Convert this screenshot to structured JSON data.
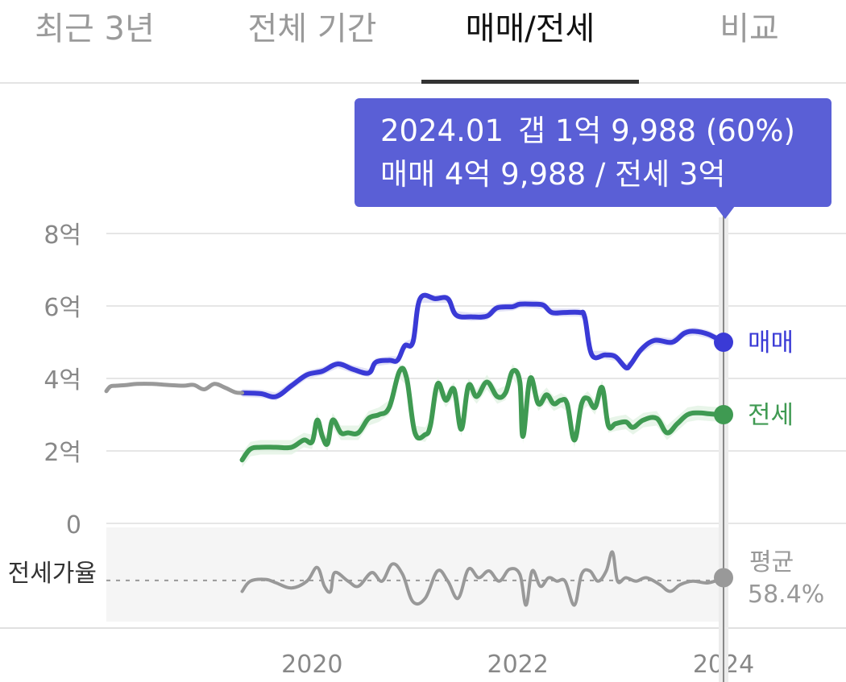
{
  "tabs": [
    {
      "label": "최근 3년"
    },
    {
      "label": "전체 기간"
    },
    {
      "label": "매매/전세"
    },
    {
      "label": "비교"
    }
  ],
  "active_tab": 2,
  "tooltip": {
    "date": "2024.01",
    "gap": "갭 1억 9,988 (60%)",
    "detail": "매매 4억 9,988 / 전세 3억"
  },
  "colors": {
    "sale": "#3a3ad6",
    "jeonse": "#3f9a52",
    "ratio": "#999999",
    "history": "#999999",
    "tooltip_bg": "#5a5fd6",
    "sale_band": "#dcdcf5",
    "jeonse_band": "#e2f2e4",
    "ratio_bg": "#f5f5f5"
  },
  "chart_data": {
    "type": "line",
    "xlabel": "",
    "ylabel": "",
    "ylim": [
      0,
      8
    ],
    "y_ticks": [
      "8억",
      "6억",
      "4억",
      "2억",
      "0"
    ],
    "x_ticks": [
      "2020",
      "2022",
      "2024"
    ],
    "x_range": [
      2018.0,
      2024.0
    ],
    "grid": true,
    "legend": "right-end labels",
    "series": [
      {
        "name": "매매",
        "key": "sale",
        "points": [
          [
            2019.32,
            3.6
          ],
          [
            2019.5,
            3.58
          ],
          [
            2019.65,
            3.5
          ],
          [
            2019.8,
            3.8
          ],
          [
            2019.95,
            4.1
          ],
          [
            2020.1,
            4.2
          ],
          [
            2020.25,
            4.4
          ],
          [
            2020.4,
            4.25
          ],
          [
            2020.55,
            4.15
          ],
          [
            2020.62,
            4.45
          ],
          [
            2020.75,
            4.5
          ],
          [
            2020.83,
            4.5
          ],
          [
            2020.9,
            4.9
          ],
          [
            2020.98,
            5.0
          ],
          [
            2021.05,
            6.2
          ],
          [
            2021.2,
            6.2
          ],
          [
            2021.32,
            6.2
          ],
          [
            2021.4,
            5.75
          ],
          [
            2021.55,
            5.7
          ],
          [
            2021.7,
            5.72
          ],
          [
            2021.8,
            5.95
          ],
          [
            2021.95,
            5.98
          ],
          [
            2022.02,
            6.05
          ],
          [
            2022.15,
            6.05
          ],
          [
            2022.25,
            6.02
          ],
          [
            2022.33,
            5.82
          ],
          [
            2022.45,
            5.82
          ],
          [
            2022.6,
            5.82
          ],
          [
            2022.65,
            5.7
          ],
          [
            2022.72,
            4.65
          ],
          [
            2022.85,
            4.65
          ],
          [
            2022.95,
            4.6
          ],
          [
            2023.05,
            4.3
          ],
          [
            2023.1,
            4.4
          ],
          [
            2023.2,
            4.8
          ],
          [
            2023.33,
            5.05
          ],
          [
            2023.5,
            5.0
          ],
          [
            2023.62,
            5.25
          ],
          [
            2023.72,
            5.3
          ],
          [
            2023.85,
            5.22
          ],
          [
            2024.0,
            4.9988
          ]
        ]
      },
      {
        "name": "전세",
        "key": "jeonse",
        "points": [
          [
            2019.32,
            1.75
          ],
          [
            2019.4,
            2.05
          ],
          [
            2019.5,
            2.1
          ],
          [
            2019.65,
            2.1
          ],
          [
            2019.8,
            2.1
          ],
          [
            2019.92,
            2.3
          ],
          [
            2020.0,
            2.25
          ],
          [
            2020.05,
            2.85
          ],
          [
            2020.1,
            2.4
          ],
          [
            2020.15,
            2.2
          ],
          [
            2020.2,
            2.85
          ],
          [
            2020.28,
            2.5
          ],
          [
            2020.35,
            2.5
          ],
          [
            2020.45,
            2.5
          ],
          [
            2020.55,
            2.9
          ],
          [
            2020.65,
            3.0
          ],
          [
            2020.75,
            3.2
          ],
          [
            2020.85,
            4.2
          ],
          [
            2020.92,
            4.0
          ],
          [
            2021.0,
            2.5
          ],
          [
            2021.1,
            2.45
          ],
          [
            2021.15,
            2.7
          ],
          [
            2021.22,
            3.85
          ],
          [
            2021.3,
            3.4
          ],
          [
            2021.38,
            3.7
          ],
          [
            2021.45,
            2.6
          ],
          [
            2021.52,
            3.8
          ],
          [
            2021.6,
            3.5
          ],
          [
            2021.7,
            3.9
          ],
          [
            2021.8,
            3.5
          ],
          [
            2021.88,
            3.6
          ],
          [
            2021.95,
            4.2
          ],
          [
            2022.02,
            3.9
          ],
          [
            2022.05,
            2.4
          ],
          [
            2022.12,
            4.0
          ],
          [
            2022.2,
            3.3
          ],
          [
            2022.28,
            3.55
          ],
          [
            2022.35,
            3.3
          ],
          [
            2022.42,
            3.4
          ],
          [
            2022.48,
            3.3
          ],
          [
            2022.55,
            2.3
          ],
          [
            2022.62,
            3.3
          ],
          [
            2022.68,
            3.45
          ],
          [
            2022.75,
            3.2
          ],
          [
            2022.82,
            3.75
          ],
          [
            2022.88,
            2.7
          ],
          [
            2022.95,
            2.75
          ],
          [
            2023.05,
            2.8
          ],
          [
            2023.12,
            2.65
          ],
          [
            2023.22,
            2.85
          ],
          [
            2023.35,
            2.9
          ],
          [
            2023.45,
            2.5
          ],
          [
            2023.55,
            2.75
          ],
          [
            2023.65,
            3.0
          ],
          [
            2023.75,
            3.05
          ],
          [
            2023.88,
            3.02
          ],
          [
            2024.0,
            3.0
          ]
        ]
      },
      {
        "name": "",
        "key": "history",
        "points": [
          [
            2018.0,
            3.65
          ],
          [
            2018.04,
            3.78
          ],
          [
            2018.1,
            3.8
          ],
          [
            2018.2,
            3.82
          ],
          [
            2018.3,
            3.85
          ],
          [
            2018.45,
            3.85
          ],
          [
            2018.6,
            3.82
          ],
          [
            2018.75,
            3.8
          ],
          [
            2018.85,
            3.82
          ],
          [
            2018.95,
            3.7
          ],
          [
            2019.05,
            3.85
          ],
          [
            2019.15,
            3.75
          ],
          [
            2019.25,
            3.62
          ],
          [
            2019.32,
            3.6
          ]
        ]
      }
    ],
    "ratio": {
      "label": "전세가율",
      "average_label": "평균",
      "average_value": "58.4%",
      "average": 58.4,
      "points": [
        [
          2019.32,
          52
        ],
        [
          2019.4,
          58
        ],
        [
          2019.55,
          59
        ],
        [
          2019.65,
          57
        ],
        [
          2019.8,
          54
        ],
        [
          2019.95,
          58
        ],
        [
          2020.05,
          66
        ],
        [
          2020.12,
          55
        ],
        [
          2020.18,
          52
        ],
        [
          2020.22,
          63
        ],
        [
          2020.35,
          58
        ],
        [
          2020.45,
          55
        ],
        [
          2020.58,
          63
        ],
        [
          2020.68,
          58
        ],
        [
          2020.78,
          68
        ],
        [
          2020.88,
          62
        ],
        [
          2020.98,
          46
        ],
        [
          2021.1,
          48
        ],
        [
          2021.22,
          64
        ],
        [
          2021.32,
          58
        ],
        [
          2021.42,
          48
        ],
        [
          2021.52,
          65
        ],
        [
          2021.62,
          60
        ],
        [
          2021.72,
          64
        ],
        [
          2021.82,
          58
        ],
        [
          2021.92,
          65
        ],
        [
          2022.02,
          62
        ],
        [
          2022.08,
          44
        ],
        [
          2022.14,
          64
        ],
        [
          2022.22,
          55
        ],
        [
          2022.3,
          60
        ],
        [
          2022.38,
          58
        ],
        [
          2022.46,
          58
        ],
        [
          2022.55,
          44
        ],
        [
          2022.62,
          62
        ],
        [
          2022.7,
          64
        ],
        [
          2022.78,
          58
        ],
        [
          2022.86,
          64
        ],
        [
          2022.92,
          75
        ],
        [
          2022.97,
          58
        ],
        [
          2023.05,
          60
        ],
        [
          2023.15,
          58
        ],
        [
          2023.25,
          60
        ],
        [
          2023.38,
          56
        ],
        [
          2023.48,
          52
        ],
        [
          2023.58,
          56
        ],
        [
          2023.7,
          58
        ],
        [
          2023.85,
          57
        ],
        [
          2024.0,
          60
        ]
      ]
    }
  }
}
